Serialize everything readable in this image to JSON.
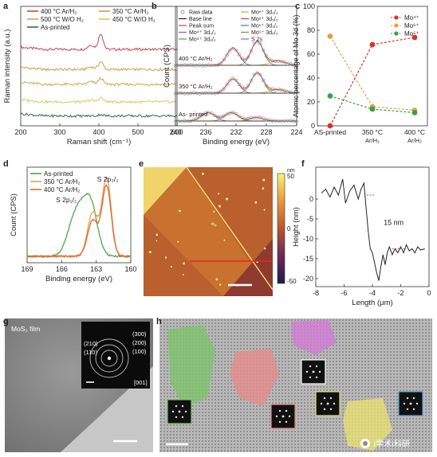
{
  "panel_labels": [
    "a",
    "b",
    "c",
    "d",
    "e",
    "f",
    "g",
    "h"
  ],
  "chart_data": [
    {
      "id": "a",
      "type": "line",
      "xlabel": "Raman shift (cm⁻¹)",
      "ylabel": "Raman intensity (a.u.)",
      "xlim": [
        200,
        600
      ],
      "xticks": [
        200,
        300,
        400,
        500,
        600
      ],
      "legend": "top",
      "series": [
        {
          "name": "400 °C Ar/H₂",
          "color": "#c8464c",
          "offset": 4.0,
          "peaks": [
            [
              380,
              0.25,
              8
            ],
            [
              405,
              0.9,
              6
            ]
          ]
        },
        {
          "name": "350 °C Ar/H₂",
          "color": "#d49a46",
          "offset": 2.85,
          "peaks": [
            [
              380,
              0.15,
              8
            ],
            [
              405,
              0.45,
              6
            ]
          ]
        },
        {
          "name": "500 °C W/O H₂",
          "color": "#c9a84a",
          "offset": 2.0,
          "peaks": [
            [
              380,
              0.15,
              8
            ],
            [
              405,
              0.35,
              6
            ]
          ]
        },
        {
          "name": "450 °C W/O H₂",
          "color": "#d8c85a",
          "offset": 1.0,
          "peaks": [
            [
              380,
              0.1,
              8
            ],
            [
              405,
              0.25,
              6
            ]
          ]
        },
        {
          "name": "As-printed",
          "color": "#2f6e4e",
          "offset": 0.2,
          "peaks": [
            [
              405,
              0.08,
              6
            ]
          ]
        }
      ]
    },
    {
      "id": "b",
      "type": "scatter",
      "xlabel": "Binding energy (eV)",
      "ylabel": "Count (CPS)",
      "xlim": [
        240,
        224
      ],
      "xticks": [
        240,
        236,
        232,
        228,
        224
      ],
      "legend": [
        {
          "label": "Raw data",
          "kind": "circle",
          "color": "#888888"
        },
        {
          "label": "Base line",
          "kind": "line",
          "color": "#222222"
        },
        {
          "label": "Peak sum",
          "kind": "line",
          "color": "#d24a4a"
        },
        {
          "label": "Mo⁴⁺ 3d₃/₂",
          "kind": "line",
          "color": "#8a5ab0"
        },
        {
          "label": "Mo⁴⁺ 3d₅/₂",
          "kind": "line",
          "color": "#5aa05a"
        },
        {
          "label": "Mo⁶⁺ 3d₃/₂",
          "kind": "line",
          "color": "#e0a020"
        },
        {
          "label": "Mo⁶⁺ 3d₅/₂",
          "kind": "line",
          "color": "#c04040"
        },
        {
          "label": "Mo⁵⁺ 3d₃/₂",
          "kind": "line",
          "color": "#3a7ac0"
        },
        {
          "label": "Mo⁵⁺ 3d₅/₂",
          "kind": "line",
          "color": "#b08040"
        },
        {
          "label": "S 2s",
          "kind": "line",
          "color": "#a060c0"
        }
      ],
      "annotations": [
        "400 °C Ar/H₂",
        "350 °C Ar/H₂",
        "As- printed"
      ],
      "stacks": [
        {
          "label": "400 °C Ar/H₂",
          "offset": 2.0,
          "peaks": [
            [
              229.2,
              1.0,
              0.8
            ],
            [
              232.4,
              0.72,
              0.8
            ],
            [
              226.5,
              0.18,
              1.0
            ]
          ]
        },
        {
          "label": "350 °C Ar/H₂",
          "offset": 1.0,
          "peaks": [
            [
              229.2,
              0.85,
              0.8
            ],
            [
              232.4,
              0.6,
              0.8
            ],
            [
              226.5,
              0.15,
              1.0
            ]
          ]
        },
        {
          "label": "As- printed",
          "offset": 0.0,
          "peaks": [
            [
              232.6,
              0.35,
              0.9
            ],
            [
              235.7,
              0.35,
              0.9
            ],
            [
              229.3,
              0.15,
              0.9
            ]
          ]
        }
      ]
    },
    {
      "id": "c",
      "type": "line",
      "xlabel": "",
      "ylabel": "Atomic percentage of Mo 3d (%)",
      "ylim": [
        0,
        100
      ],
      "yticks": [
        0,
        20,
        40,
        60,
        80,
        100
      ],
      "categories": [
        "AS-printed",
        "350 °C Ar/H₂",
        "400 °C Ar/H₂"
      ],
      "legend": "right",
      "series": [
        {
          "name": "Mo⁴⁺",
          "color": "#d8352a",
          "values": [
            0,
            68,
            74
          ]
        },
        {
          "name": "Mo⁶⁺",
          "color": "#e8a040",
          "values": [
            75,
            16,
            13
          ]
        },
        {
          "name": "Mo⁵⁺",
          "color": "#3aa04a",
          "values": [
            25,
            14,
            11
          ]
        }
      ]
    },
    {
      "id": "d",
      "type": "line",
      "xlabel": "Binding energy (eV)",
      "ylabel": "Count (CPS)",
      "xlim": [
        169,
        160
      ],
      "xticks": [
        169,
        166,
        163,
        160
      ],
      "legend": "top-left",
      "annotations": [
        "S 2p₁/₂",
        "S 2p₃/₂"
      ],
      "series": [
        {
          "name": "As-printed",
          "color": "#4caa4a",
          "peaks": [
            [
              164.7,
              0.55,
              0.7
            ],
            [
              163.5,
              0.62,
              0.6
            ]
          ]
        },
        {
          "name": "350 °C Ar/H₂",
          "color": "#e8a050",
          "peaks": [
            [
              163.3,
              0.55,
              0.45
            ],
            [
              162.1,
              0.98,
              0.4
            ]
          ]
        },
        {
          "name": "400 °C Ar/H₂",
          "color": "#e06a30",
          "peaks": [
            [
              163.3,
              0.45,
              0.45
            ],
            [
              162.1,
              0.88,
              0.4
            ]
          ]
        }
      ]
    },
    {
      "id": "e",
      "type": "heatmap",
      "colorbar_label": "nm",
      "colorbar_ticks": [
        "50",
        "0",
        "-50"
      ]
    },
    {
      "id": "f",
      "type": "line",
      "xlabel": "Length (μm)",
      "ylabel": "Height (nm)",
      "xlim": [
        -8,
        0
      ],
      "ylim": [
        -22,
        8
      ],
      "xticks": [
        -8,
        -6,
        -4,
        -2,
        0
      ],
      "yticks": [
        0,
        -5,
        -10,
        -15,
        -20
      ],
      "annotations": [
        "15 nm"
      ],
      "series": [
        {
          "name": "profile",
          "color": "#222222",
          "x": [
            -7.6,
            -7.3,
            -7.0,
            -6.7,
            -6.4,
            -6.1,
            -5.9,
            -5.6,
            -5.3,
            -5.0,
            -4.8,
            -4.6,
            -4.45,
            -4.3,
            -4.15,
            -4.0,
            -3.85,
            -3.7,
            -3.55,
            -3.4,
            -3.25,
            -3.1,
            -2.95,
            -2.8,
            -2.6,
            -2.4,
            -2.2,
            -2.0,
            -1.8,
            -1.6,
            -1.4,
            -1.2,
            -1.0,
            -0.8,
            -0.6,
            -0.3
          ],
          "y": [
            1.5,
            2.5,
            0.5,
            3.0,
            1.0,
            5.0,
            -1.0,
            2.0,
            3.5,
            0.0,
            2.5,
            4.0,
            -2.0,
            -8.0,
            -12.5,
            -13.5,
            -16.0,
            -18.5,
            -20.5,
            -17.0,
            -14.0,
            -16.5,
            -13.5,
            -12.0,
            -14.0,
            -12.5,
            -13.5,
            -12.0,
            -13.5,
            -11.5,
            -13.0,
            -12.5,
            -13.5,
            -12.0,
            -12.8,
            -12.5
          ]
        }
      ]
    }
  ],
  "panel_g": {
    "film_label": "MoS₂ film",
    "rings": [
      "(210)",
      "(110)",
      "(300)",
      "(200)",
      "(100)"
    ],
    "zone_axis": "[001]"
  },
  "panel_h": {},
  "watermark": "i学术i科研"
}
